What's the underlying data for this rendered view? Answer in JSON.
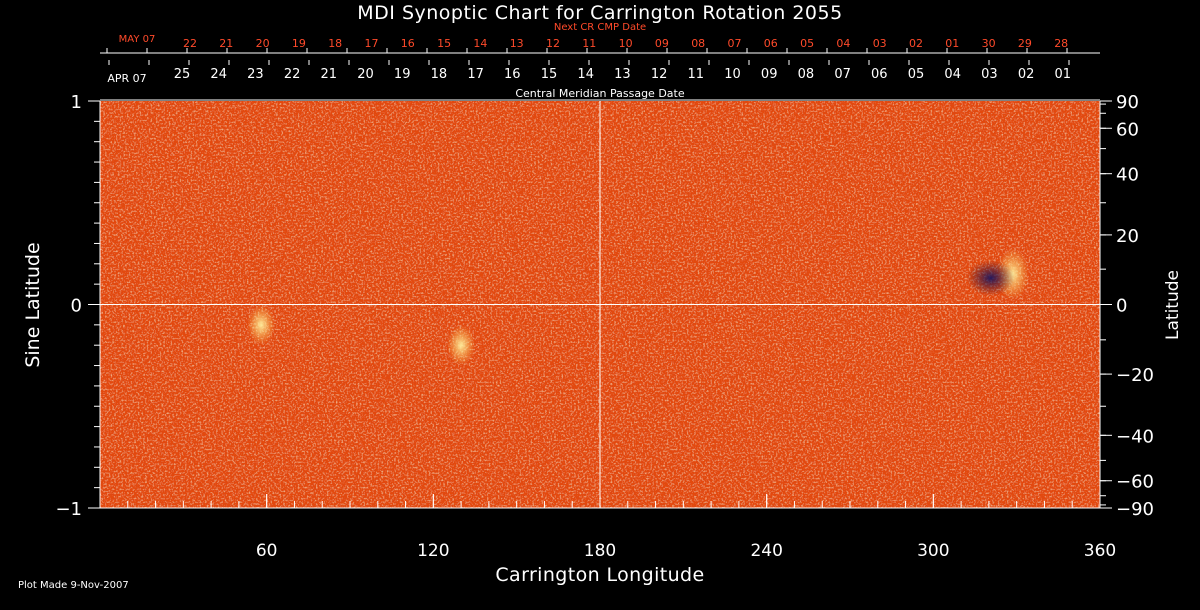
{
  "chart_data": {
    "type": "heatmap",
    "title": "MDI Synoptic Chart for Carrington Rotation 2055",
    "xlabel": "Carrington Longitude",
    "ylabel_left": "Sine Latitude",
    "ylabel_right": "Latitude",
    "xlim": [
      0,
      360
    ],
    "ylim": [
      -1,
      1
    ],
    "x_ticks": [
      60,
      120,
      180,
      240,
      300,
      360
    ],
    "y_left_ticks": [
      {
        "value": 1,
        "label": "1"
      },
      {
        "value": 0,
        "label": "0"
      },
      {
        "value": -1,
        "label": "−1"
      }
    ],
    "y_right_ticks": [
      {
        "deg": 90,
        "label": "90"
      },
      {
        "deg": 60,
        "label": "60"
      },
      {
        "deg": 40,
        "label": "40"
      },
      {
        "deg": 20,
        "label": "20"
      },
      {
        "deg": 0,
        "label": "0"
      },
      {
        "deg": -20,
        "label": "−20"
      },
      {
        "deg": -40,
        "label": "−40"
      },
      {
        "deg": -60,
        "label": "−60"
      },
      {
        "deg": -90,
        "label": "−90"
      }
    ],
    "next_cr_axis": {
      "label": "Next CR CMP Date",
      "month_label": "MAY 07",
      "day_labels": [
        "22",
        "21",
        "20",
        "19",
        "18",
        "17",
        "16",
        "15",
        "14",
        "13",
        "12",
        "11",
        "10",
        "09",
        "08",
        "07",
        "06",
        "05",
        "04",
        "03",
        "02",
        "01",
        "30",
        "29",
        "28"
      ]
    },
    "cmp_axis": {
      "label": "Central Meridian Passage Date",
      "month_label": "APR 07",
      "day_labels": [
        "25",
        "24",
        "23",
        "22",
        "21",
        "20",
        "19",
        "18",
        "17",
        "16",
        "15",
        "14",
        "13",
        "12",
        "11",
        "10",
        "09",
        "08",
        "07",
        "06",
        "05",
        "04",
        "03",
        "02",
        "01"
      ]
    },
    "features": [
      {
        "type": "active-region",
        "longitude": 325,
        "sin_latitude": 0.15
      },
      {
        "type": "plage",
        "longitude": 58,
        "sin_latitude": -0.1
      },
      {
        "type": "plage",
        "longitude": 130,
        "sin_latitude": -0.2
      }
    ],
    "grid": "crosshair at longitude 180 and sine latitude 0"
  },
  "footer": {
    "plot_made": "Plot Made  9-Nov-2007"
  },
  "colors": {
    "background": "#000000",
    "map_base": "#e34a10",
    "bright": "#ffe080",
    "dark": "#1a1450",
    "axis": "#ffffff",
    "next_cr_text": "#ff4a2a"
  }
}
